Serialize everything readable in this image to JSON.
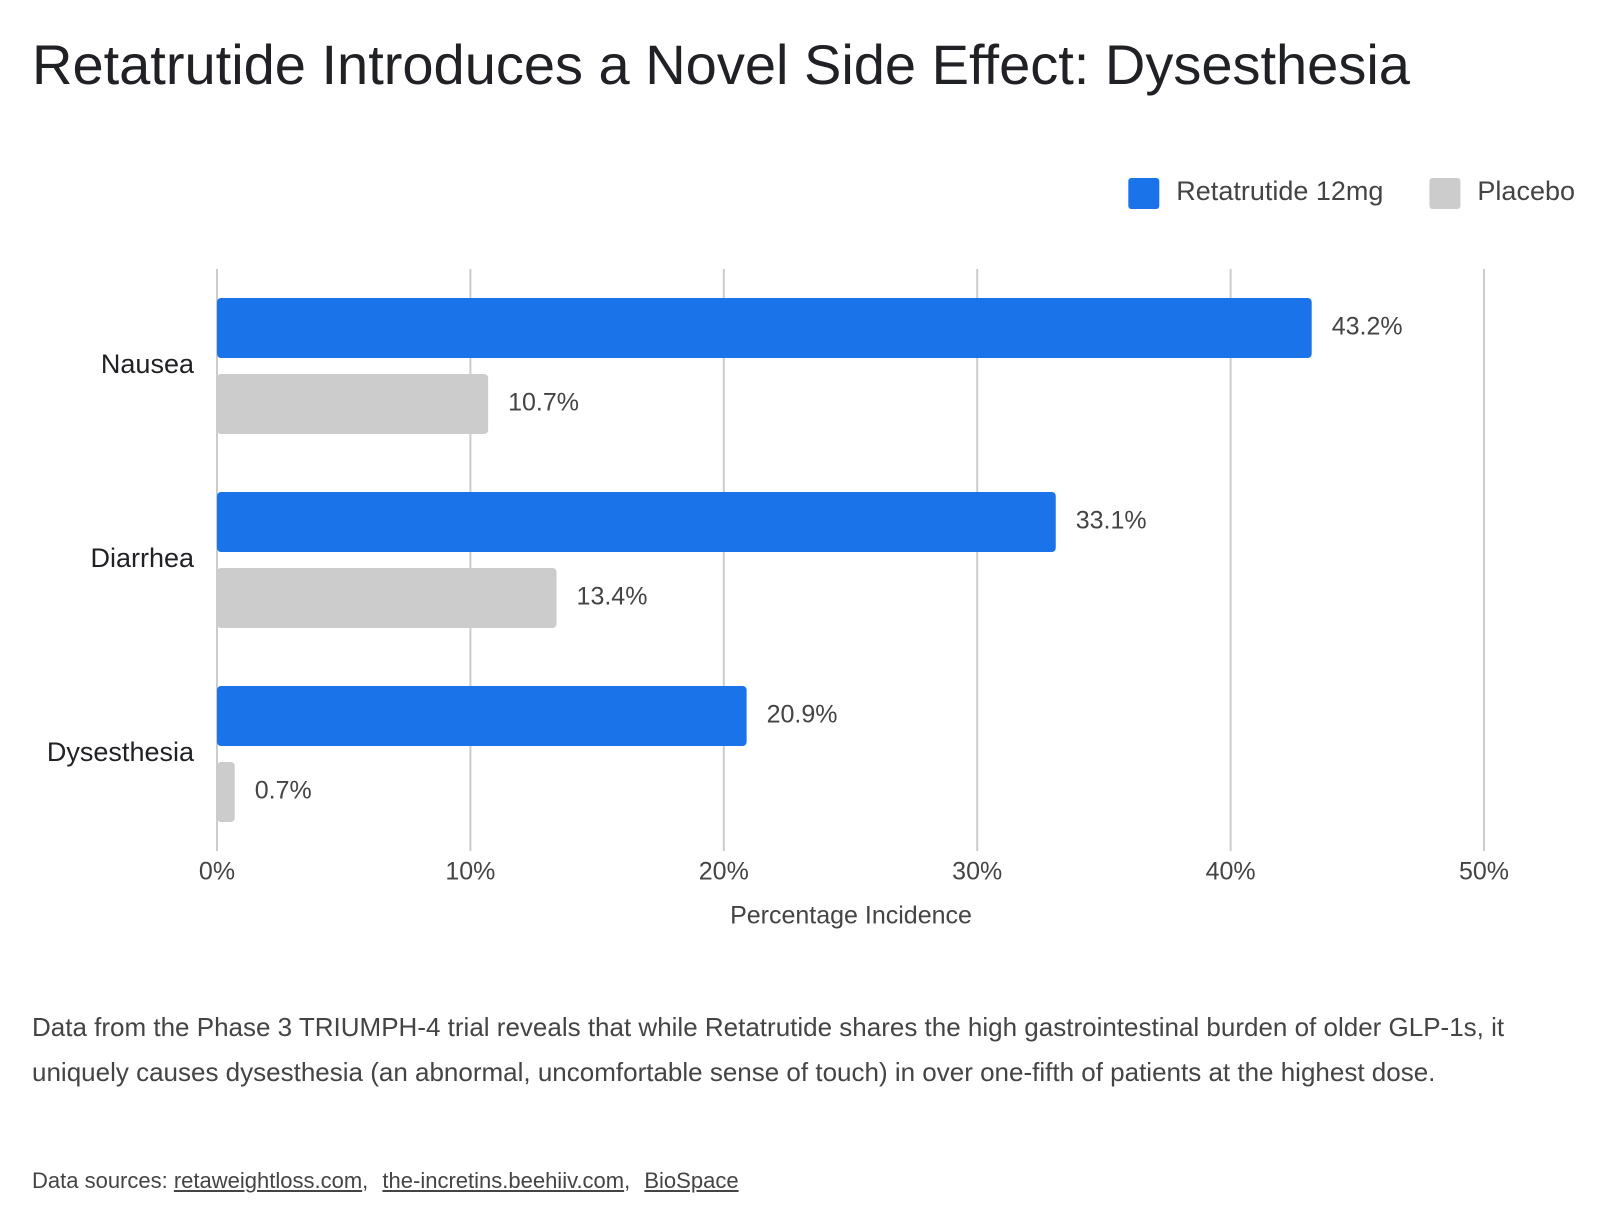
{
  "chart_data": {
    "type": "bar",
    "orientation": "horizontal",
    "title": "Retatrutide Introduces a Novel Side Effect: Dysesthesia",
    "categories": [
      "Nausea",
      "Diarrhea",
      "Dysesthesia"
    ],
    "series": [
      {
        "name": "Retatrutide 12mg",
        "color": "#1a73e8",
        "values": [
          43.2,
          33.1,
          20.9
        ],
        "value_labels": [
          "43.2%",
          "33.1%",
          "20.9%"
        ]
      },
      {
        "name": "Placebo",
        "color": "#cccccc",
        "values": [
          10.7,
          13.4,
          0.7
        ],
        "value_labels": [
          "10.7%",
          "13.4%",
          "0.7%"
        ]
      }
    ],
    "xlim": [
      0,
      50
    ],
    "xticks": [
      {
        "value": 0,
        "label": "0%"
      },
      {
        "value": 10,
        "label": "10%"
      },
      {
        "value": 20,
        "label": "20%"
      },
      {
        "value": 30,
        "label": "30%"
      },
      {
        "value": 40,
        "label": "40%"
      },
      {
        "value": 50,
        "label": "50%"
      }
    ],
    "xlabel": "Percentage Incidence",
    "grid": true,
    "legend": "top-right",
    "description": "Data from the Phase 3 TRIUMPH-4 trial reveals that while Retatrutide shares the high gastrointestinal burden of older GLP-1s, it uniquely causes dysesthesia (an abnormal, uncomfortable sense of touch) in over one-fifth of patients at the highest dose.",
    "sources": {
      "label": "Data sources:",
      "links": [
        "retaweightloss.com",
        "the-incretins.beehiiv.com",
        "BioSpace"
      ]
    }
  }
}
